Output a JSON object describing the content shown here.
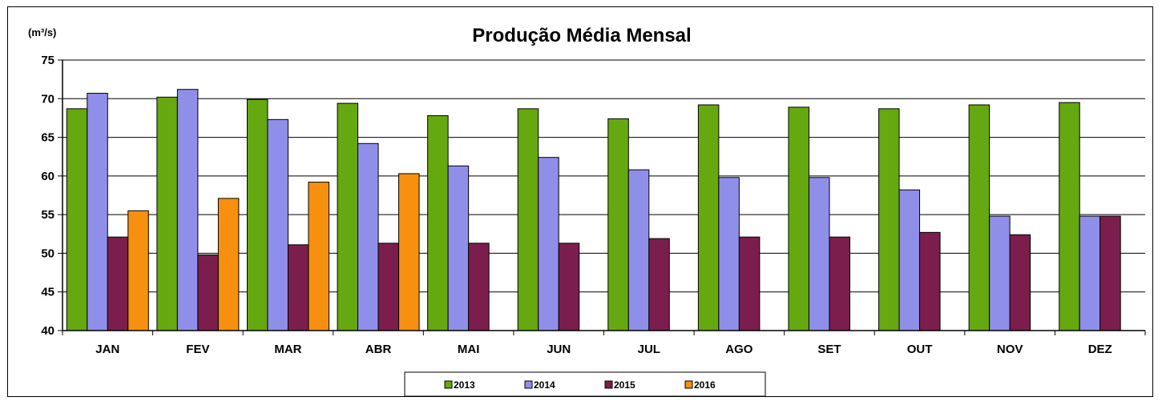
{
  "chart_data": {
    "type": "bar",
    "title": "Produção Média Mensal",
    "unit_label": "(m³/s)",
    "xlabel": "",
    "ylabel": "",
    "ylim": [
      40,
      75
    ],
    "yticks": [
      40,
      45,
      50,
      55,
      60,
      65,
      70,
      75
    ],
    "grid": true,
    "legend_position": "bottom",
    "categories": [
      "JAN",
      "FEV",
      "MAR",
      "ABR",
      "MAI",
      "JUN",
      "JUL",
      "AGO",
      "SET",
      "OUT",
      "NOV",
      "DEZ"
    ],
    "series": [
      {
        "name": "2013",
        "color": "#66A80F",
        "values": [
          68.7,
          70.2,
          69.9,
          69.4,
          67.8,
          68.7,
          67.4,
          69.2,
          68.9,
          68.7,
          69.2,
          69.5
        ]
      },
      {
        "name": "2014",
        "color": "#8F8FEA",
        "values": [
          70.7,
          71.2,
          67.3,
          64.2,
          61.3,
          62.4,
          60.8,
          59.8,
          59.8,
          58.2,
          54.8,
          54.8
        ]
      },
      {
        "name": "2015",
        "color": "#7B1E4E",
        "values": [
          52.1,
          49.8,
          51.1,
          51.3,
          51.3,
          51.3,
          51.9,
          52.1,
          52.1,
          52.7,
          52.4,
          54.8
        ]
      },
      {
        "name": "2016",
        "color": "#F7900E",
        "values": [
          55.5,
          57.1,
          59.2,
          60.3,
          null,
          null,
          null,
          null,
          null,
          null,
          null,
          null
        ]
      }
    ]
  }
}
